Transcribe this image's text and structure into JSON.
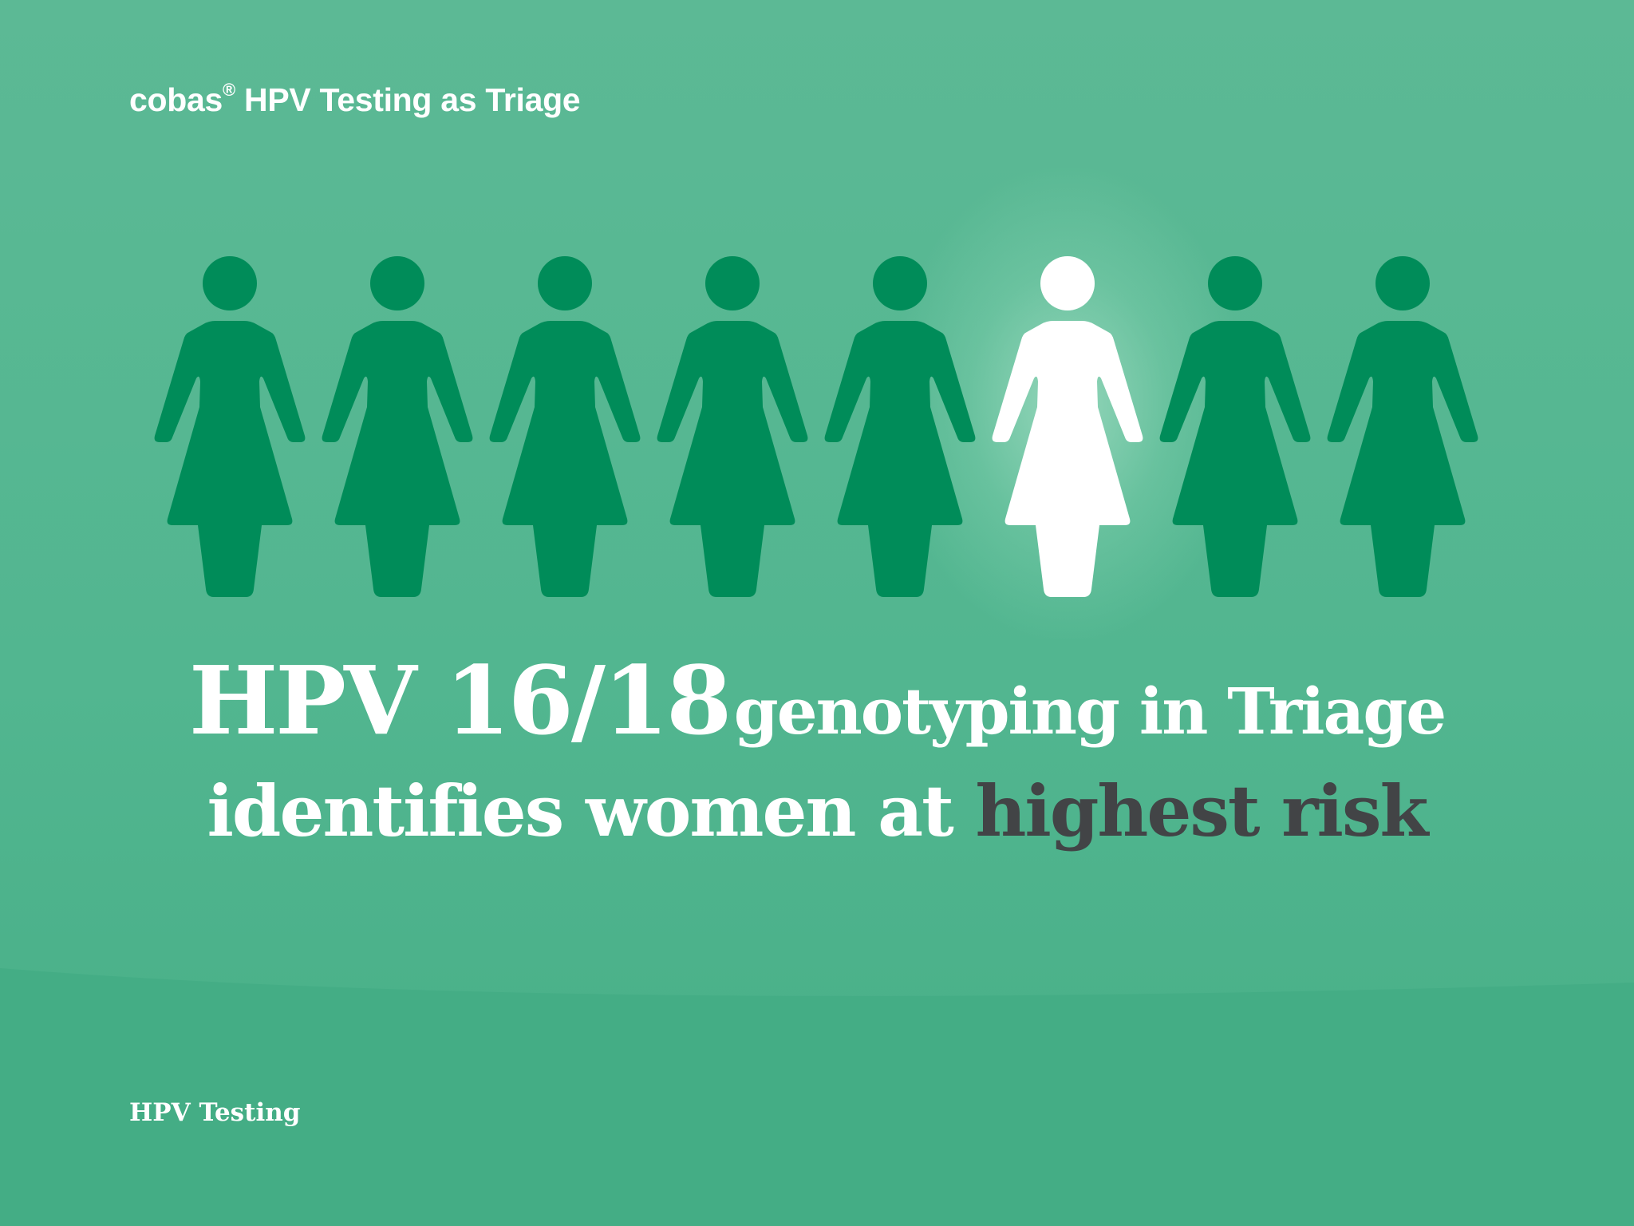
{
  "header": {
    "brand": "cobas",
    "registered_mark": "®",
    "title_rest": "HPV Testing as Triage"
  },
  "figures": {
    "count": 8,
    "highlighted_index": 5,
    "default_color": "#008c59",
    "highlight_color": "#ffffff",
    "icon": "woman-icon"
  },
  "headline": {
    "part1": "HPV 16/18",
    "part2": "genotyping in Triage",
    "part3": "identifies women at",
    "part4": "highest risk",
    "accent_color": "#424446"
  },
  "footer": {
    "label": "HPV Testing"
  },
  "colors": {
    "background": "#52b690",
    "wave": "#44ad85"
  }
}
